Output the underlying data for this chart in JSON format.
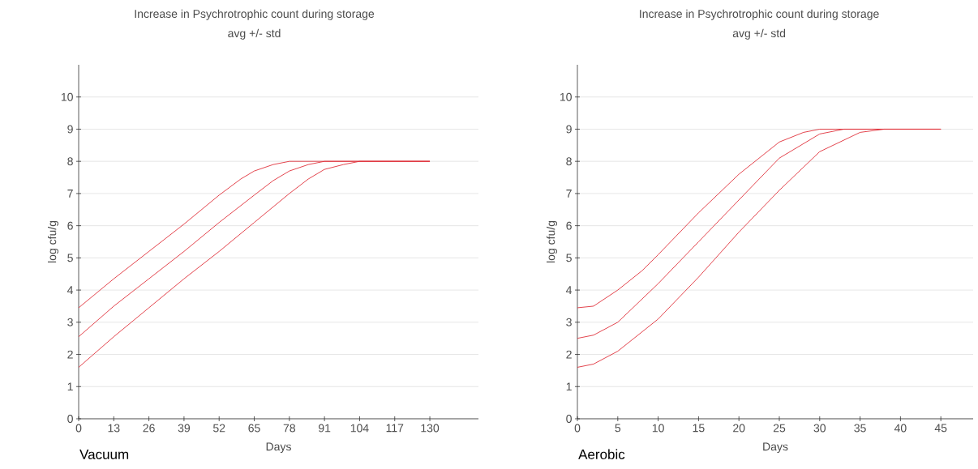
{
  "chart_data": [
    {
      "type": "line",
      "title": "Increase in Psychrotrophic count during storage",
      "subtitle": "avg +/- std",
      "xlabel": "Days",
      "ylabel": "log cfu/g",
      "annotations": [
        "Vacuum"
      ],
      "xlim": [
        0,
        148
      ],
      "ylim": [
        0,
        11
      ],
      "xticks": [
        0,
        13,
        26,
        39,
        52,
        65,
        78,
        91,
        104,
        117,
        130
      ],
      "yticks": [
        0,
        1,
        2,
        3,
        4,
        5,
        6,
        7,
        8,
        9,
        10
      ],
      "grid": "y",
      "marker": "none",
      "line_style": "solid",
      "series": [
        {
          "color": "#e0303a",
          "x": [
            0,
            13,
            26,
            39,
            52,
            60,
            65,
            72,
            78,
            91,
            130
          ],
          "values": [
            3.45,
            4.35,
            5.2,
            6.05,
            6.95,
            7.45,
            7.7,
            7.9,
            8.0,
            8.0,
            8.0
          ]
        },
        {
          "color": "#e0303a",
          "x": [
            0,
            13,
            26,
            39,
            52,
            65,
            72,
            78,
            85,
            91,
            104,
            130
          ],
          "values": [
            2.55,
            3.5,
            4.35,
            5.2,
            6.1,
            6.95,
            7.4,
            7.7,
            7.9,
            8.0,
            8.0,
            8.0
          ]
        },
        {
          "color": "#e0303a",
          "x": [
            0,
            13,
            26,
            39,
            52,
            65,
            78,
            85,
            91,
            98,
            104,
            130
          ],
          "values": [
            1.6,
            2.55,
            3.45,
            4.35,
            5.2,
            6.1,
            7.0,
            7.45,
            7.75,
            7.9,
            8.0,
            8.0
          ]
        }
      ]
    },
    {
      "type": "line",
      "title": "Increase in Psychrotrophic count during storage",
      "subtitle": "avg +/- std",
      "xlabel": "Days",
      "ylabel": "log cfu/g",
      "annotations": [
        "Aerobic"
      ],
      "xlim": [
        0,
        49
      ],
      "ylim": [
        0,
        11
      ],
      "xticks": [
        0,
        5,
        10,
        15,
        20,
        25,
        30,
        35,
        40,
        45
      ],
      "yticks": [
        0,
        1,
        2,
        3,
        4,
        5,
        6,
        7,
        8,
        9,
        10
      ],
      "grid": "y",
      "marker": "none",
      "line_style": "solid",
      "series": [
        {
          "color": "#e0303a",
          "x": [
            0,
            2,
            5,
            8,
            10,
            15,
            20,
            25,
            28,
            30,
            45
          ],
          "values": [
            3.45,
            3.5,
            4.0,
            4.6,
            5.1,
            6.4,
            7.6,
            8.6,
            8.9,
            9.0,
            9.0
          ]
        },
        {
          "color": "#e0303a",
          "x": [
            0,
            2,
            5,
            10,
            15,
            20,
            25,
            30,
            33,
            45
          ],
          "values": [
            2.5,
            2.6,
            3.0,
            4.2,
            5.5,
            6.8,
            8.1,
            8.85,
            9.0,
            9.0
          ]
        },
        {
          "color": "#e0303a",
          "x": [
            0,
            2,
            5,
            10,
            15,
            20,
            25,
            30,
            35,
            38,
            45
          ],
          "values": [
            1.6,
            1.7,
            2.1,
            3.1,
            4.4,
            5.8,
            7.1,
            8.3,
            8.9,
            9.0,
            9.0
          ]
        }
      ]
    }
  ]
}
